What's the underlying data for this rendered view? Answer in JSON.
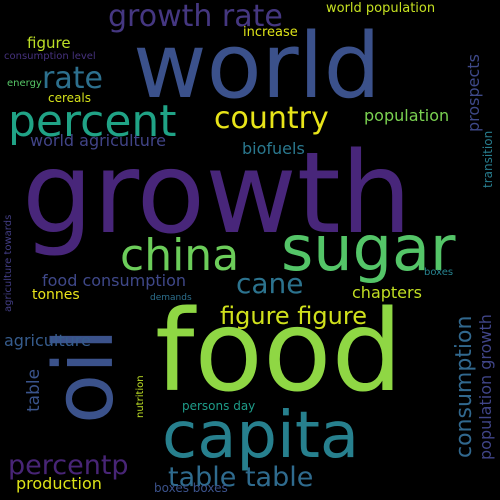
{
  "background": "#000000",
  "words": [
    {
      "text": "growth",
      "color": "#48267a"
    },
    {
      "text": "world",
      "color": "#3b518b"
    },
    {
      "text": "food",
      "color": "#8fd744"
    },
    {
      "text": "capita",
      "color": "#27808e"
    },
    {
      "text": "sugar",
      "color": "#54c568"
    },
    {
      "text": "oil",
      "color": "#3b528b"
    },
    {
      "text": "china",
      "color": "#6ccd5a"
    },
    {
      "text": "percent",
      "color": "#20a386"
    },
    {
      "text": "growth rate",
      "color": "#453781"
    },
    {
      "text": "country",
      "color": "#e8e419"
    },
    {
      "text": "rate",
      "color": "#2d708e"
    },
    {
      "text": "cane",
      "color": "#2c738e"
    },
    {
      "text": "figure figure",
      "color": "#d0e11c"
    },
    {
      "text": "table table",
      "color": "#2f6b8e"
    },
    {
      "text": "percentp",
      "color": "#482576"
    },
    {
      "text": "consumption",
      "color": "#31688e"
    },
    {
      "text": "population",
      "color": "#7ad151"
    },
    {
      "text": "world agriculture",
      "color": "#414487"
    },
    {
      "text": "biofuels",
      "color": "#2a788e"
    },
    {
      "text": "food consumption",
      "color": "#3f4889"
    },
    {
      "text": "agriculture",
      "color": "#365c8d"
    },
    {
      "text": "chapters",
      "color": "#c2df23"
    },
    {
      "text": "production",
      "color": "#dde318"
    },
    {
      "text": "population growth",
      "color": "#404588"
    },
    {
      "text": "prospects",
      "color": "#3e4989"
    },
    {
      "text": "table",
      "color": "#3a548c"
    },
    {
      "text": "tonnes",
      "color": "#eae51a"
    },
    {
      "text": "figure",
      "color": "#bddf26"
    },
    {
      "text": "increase",
      "color": "#dde318"
    },
    {
      "text": "world population",
      "color": "#c5e021"
    },
    {
      "text": "cereals",
      "color": "#d5e21a"
    },
    {
      "text": "persons day",
      "color": "#1e9c89"
    },
    {
      "text": "boxes boxes",
      "color": "#3b528b"
    },
    {
      "text": "transition",
      "color": "#287d8e"
    },
    {
      "text": "agriculture towards",
      "color": "#433e85"
    },
    {
      "text": "consumption level",
      "color": "#46327e"
    },
    {
      "text": "energy",
      "color": "#56c667"
    },
    {
      "text": "nutrition",
      "color": "#bddf26"
    },
    {
      "text": "boxes",
      "color": "#26828e"
    },
    {
      "text": "demands",
      "color": "#2d708e"
    }
  ]
}
